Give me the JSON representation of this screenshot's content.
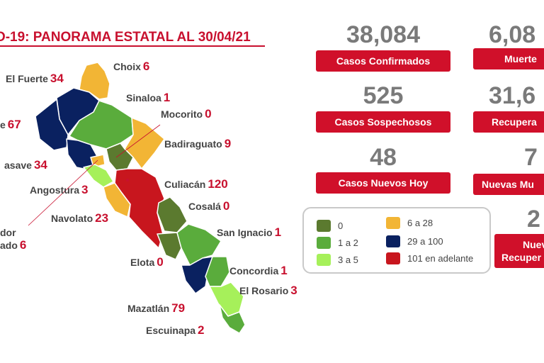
{
  "title": "D-19: PANORAMA ESTATAL AL 30/04/21",
  "colors": {
    "zero": "#5b7a2f",
    "one_two": "#5aac3c",
    "three_five": "#a6f05a",
    "six_28": "#f2b535",
    "29_100": "#0a2160",
    "101_plus": "#c8161e",
    "accent_red": "#d0102a"
  },
  "municipalities": [
    {
      "name": "Choix",
      "count": "6"
    },
    {
      "name": "El Fuerte",
      "count": "34"
    },
    {
      "name": "Sinaloa",
      "count": "1"
    },
    {
      "name": "Mocorito",
      "count": "0"
    },
    {
      "name": "e",
      "count": "67"
    },
    {
      "name": "Badiraguato",
      "count": "9"
    },
    {
      "name": "asave",
      "count": "34"
    },
    {
      "name": "Angostura",
      "count": "3"
    },
    {
      "name": "Culiacán",
      "count": "120"
    },
    {
      "name": "Cosalá",
      "count": "0"
    },
    {
      "name": "Navolato",
      "count": "23"
    },
    {
      "name": "dor",
      "count": ""
    },
    {
      "name": "ado",
      "count": "6"
    },
    {
      "name": "San Ignacio",
      "count": "1"
    },
    {
      "name": "Elota",
      "count": "0"
    },
    {
      "name": "Concordia",
      "count": "1"
    },
    {
      "name": "El Rosario",
      "count": "3"
    },
    {
      "name": "Mazatlán",
      "count": "79"
    },
    {
      "name": "Escuinapa",
      "count": "2"
    }
  ],
  "stats": [
    {
      "value": "38,084",
      "label": "Casos Confirmados"
    },
    {
      "value": "6,08",
      "label": "Muerte"
    },
    {
      "value": "525",
      "label": "Casos Sospechosos"
    },
    {
      "value": "31,6",
      "label": "Recupera"
    },
    {
      "value": "48",
      "label": "Casos Nuevos Hoy"
    },
    {
      "value": "7",
      "label": "Nuevas Mu"
    },
    {
      "value": "2",
      "label": "Nuev",
      "label2": "Recuper"
    }
  ],
  "legend": [
    {
      "label": "0",
      "color_key": "zero"
    },
    {
      "label": "1 a 2",
      "color_key": "one_two"
    },
    {
      "label": "3 a 5",
      "color_key": "three_five"
    },
    {
      "label": "6 a 28",
      "color_key": "six_28"
    },
    {
      "label": "29 a 100",
      "color_key": "29_100"
    },
    {
      "label": "101 en adelante",
      "color_key": "101_plus"
    }
  ]
}
